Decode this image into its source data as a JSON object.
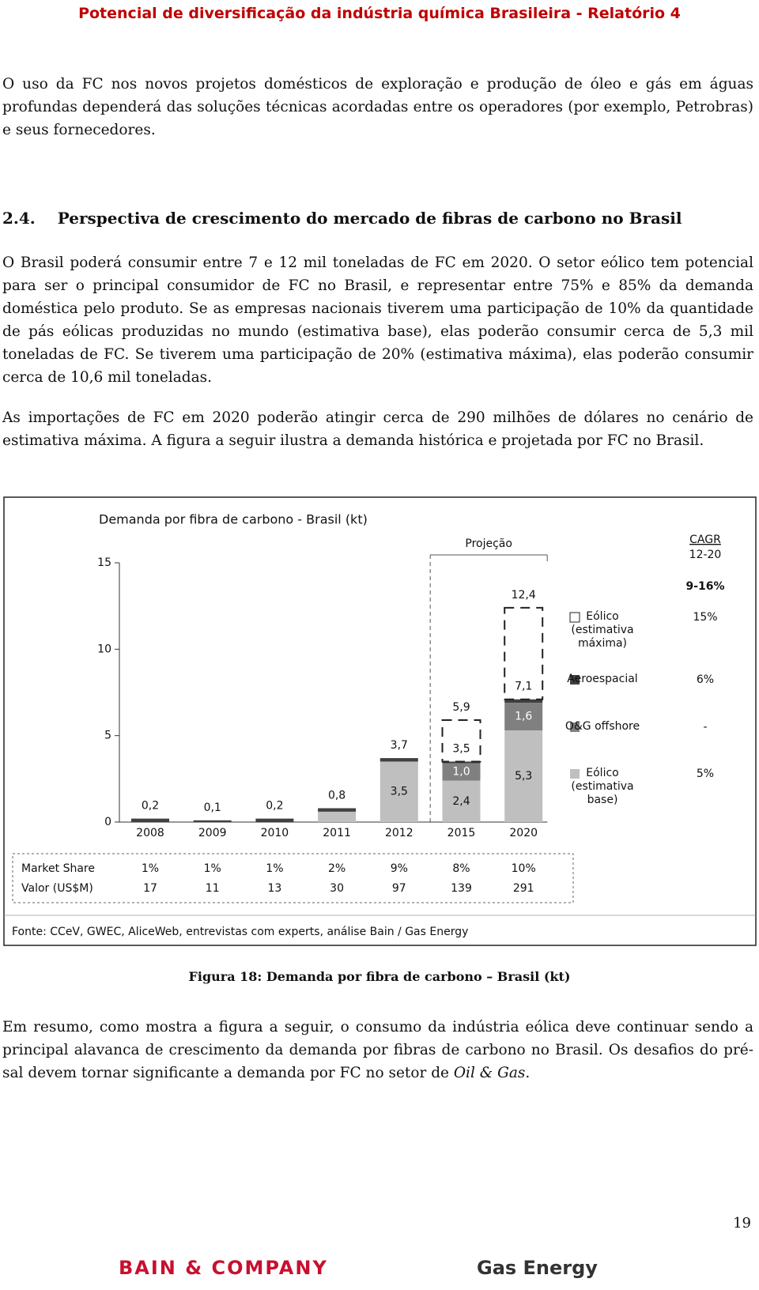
{
  "header": {
    "title": "Potencial de diversificação da indústria química Brasileira - Relatório 4"
  },
  "paragraphs": [
    "O uso da FC nos novos projetos domésticos de exploração e produção de óleo e gás em águas profundas dependerá das soluções técnicas acordadas entre os operadores (por exemplo, Petrobras) e seus fornecedores.",
    "O Brasil poderá consumir entre 7 e 12 mil toneladas de FC em 2020. O setor eólico tem potencial para ser o principal consumidor de FC no Brasil, e representar entre 75% e 85% da demanda doméstica pelo produto. Se as empresas nacionais tiverem uma participação de 10% da quantidade de pás eólicas produzidas no mundo (estimativa base), elas poderão consumir cerca de 5,3 mil toneladas de FC. Se tiverem uma participação de 20% (estimativa máxima), elas poderão consumir cerca de 10,6 mil toneladas.",
    "As importações de FC em 2020 poderão atingir cerca de 290 milhões de dólares no cenário de estimativa máxima. A figura a seguir ilustra a demanda histórica e projetada por FC no Brasil."
  ],
  "section": {
    "number": "2.4.",
    "title": "Perspectiva de crescimento do mercado de fibras de carbono no Brasil"
  },
  "chart_data": {
    "type": "bar",
    "stacked": true,
    "title": "Demanda por fibra de carbono - Brasil (kt)",
    "categories": [
      "2008",
      "2009",
      "2010",
      "2011",
      "2012",
      "2015",
      "2020"
    ],
    "series": [
      {
        "name": "Eólico (estimativa base)",
        "color": "#bfbfbf",
        "values": [
          null,
          null,
          null,
          0.6,
          3.5,
          2.4,
          5.3
        ],
        "value_labels": [
          null,
          null,
          null,
          null,
          "3,5",
          "2,4",
          "5,3"
        ],
        "cagr": "5%"
      },
      {
        "name": "O&G offshore",
        "color": "#808080",
        "values": [
          null,
          null,
          null,
          null,
          null,
          1.0,
          1.6
        ],
        "value_labels": [
          null,
          null,
          null,
          null,
          null,
          "1,0",
          "1,6"
        ],
        "cagr": "-"
      },
      {
        "name": "Aeroespacial",
        "color": "#404040",
        "values": [
          0.2,
          0.1,
          0.2,
          0.2,
          0.2,
          0.1,
          0.2
        ],
        "cagr": "6%"
      },
      {
        "name": "Eólico (estimativa máxima)",
        "color": "#ffffff",
        "dashed": true,
        "values": [
          null,
          null,
          null,
          null,
          null,
          2.4,
          5.3
        ],
        "cagr": "15%"
      }
    ],
    "totals": {
      "values": [
        0.2,
        0.1,
        0.2,
        0.8,
        3.7,
        3.5,
        7.1
      ],
      "value_labels": [
        "0,2",
        "0,1",
        "0,2",
        "0,8",
        "3,7",
        "3,5",
        "7,1"
      ]
    },
    "max_totals": {
      "values": [
        null,
        null,
        null,
        null,
        null,
        5.9,
        12.4
      ],
      "value_labels": [
        null,
        null,
        null,
        null,
        null,
        "5,9",
        "12,4"
      ]
    },
    "ylim": [
      0,
      15
    ],
    "yticks": [
      0,
      5,
      10,
      15
    ],
    "grid": false,
    "projection": {
      "label": "Projeção",
      "start": "2015"
    },
    "cagr_header": {
      "title": "CAGR",
      "period": "12-20",
      "total": "9-16%"
    },
    "table": {
      "rows": [
        {
          "label": "Market Share",
          "values": [
            1,
            1,
            1,
            2,
            9,
            8,
            10
          ],
          "value_labels": [
            "1%",
            "1%",
            "1%",
            "2%",
            "9%",
            "8%",
            "10%"
          ]
        },
        {
          "label": "Valor (US$M)",
          "values": [
            17,
            11,
            13,
            30,
            97,
            139,
            291
          ]
        }
      ]
    },
    "source": "Fonte: CCeV, GWEC, AliceWeb, entrevistas com experts, análise Bain / Gas Energy"
  },
  "figure_caption": "Figura 18: Demanda por fibra de carbono – Brasil (kt)",
  "closing_paragraph": [
    "Em resumo, como mostra a figura a seguir, o consumo da indústria eólica deve continuar sendo a principal alavanca de crescimento da demanda por fibras de carbono no Brasil. Os desafios do pré-sal devem tornar significante a demanda por FC no setor de ",
    "Oil & Gas",
    "."
  ],
  "page_number": 19,
  "footer": {
    "left_logo": "BAIN & COMPANY",
    "right_logo": "Gas Energy"
  }
}
